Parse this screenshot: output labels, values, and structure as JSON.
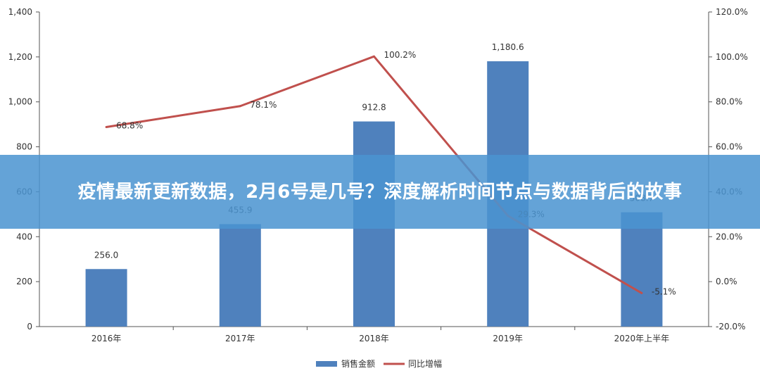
{
  "banner": {
    "title": "疫情最新更新数据，2月6号是几号？深度解析时间节点与数据背后的故事"
  },
  "colors": {
    "bar": "#4f81bd",
    "line": "#c0504d",
    "axis": "#555555",
    "banner": "#4a94d1"
  },
  "chart_data": {
    "type": "bar+line",
    "categories": [
      "2016年",
      "2017年",
      "2018年",
      "2019年",
      "2020年上半年"
    ],
    "series": [
      {
        "name": "销售金额",
        "type": "bar",
        "axis": "left",
        "values": [
          256.0,
          455.9,
          912.8,
          1180.6,
          508.7
        ],
        "labels": [
          "256.0",
          "455.9",
          "912.8",
          "1,180.6",
          "508.7"
        ]
      },
      {
        "name": "同比增幅",
        "type": "line",
        "axis": "right",
        "values": [
          68.8,
          78.1,
          100.2,
          29.3,
          -5.1
        ],
        "labels": [
          "68.8%",
          "78.1%",
          "100.2%",
          "29.3%",
          "-5.1%"
        ]
      }
    ],
    "left_axis": {
      "ylim": [
        0,
        1400
      ],
      "ticks": [
        "0",
        "200",
        "400",
        "600",
        "800",
        "1,000",
        "1,200",
        "1,400"
      ]
    },
    "right_axis": {
      "ylim": [
        -20,
        120
      ],
      "ticks": [
        "-20.0%",
        "0.0%",
        "20.0%",
        "40.0%",
        "60.0%",
        "80.0%",
        "100.0%",
        "120.0%"
      ]
    },
    "grid": false,
    "legend": "bottom-center"
  }
}
